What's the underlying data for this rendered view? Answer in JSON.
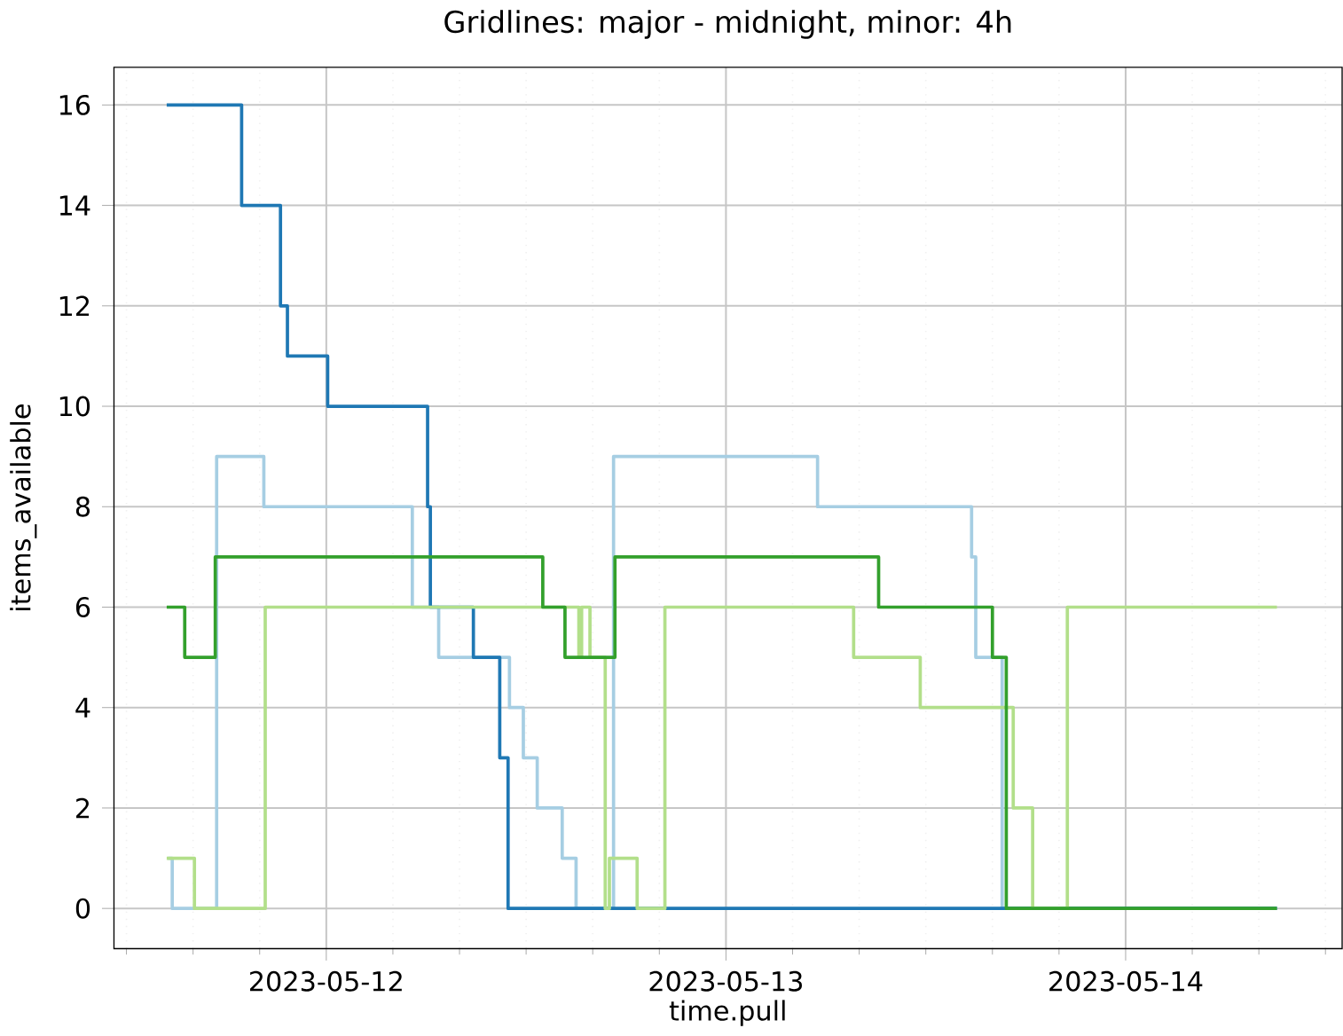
{
  "chart_data": {
    "type": "step",
    "title": "Gridlines: major - midnight, minor: 4h",
    "xlabel": "time.pull",
    "ylabel": "items_available",
    "xlim": [
      "2023-05-11T11:15",
      "2023-05-14T13:00"
    ],
    "ylim": [
      -0.8,
      16.75
    ],
    "yticks": [
      0,
      2,
      4,
      6,
      8,
      10,
      12,
      14,
      16
    ],
    "xticks": [
      {
        "value": "2023-05-11T12:00",
        "label": null
      },
      {
        "value": "2023-05-11T16:00",
        "label": null
      },
      {
        "value": "2023-05-11T20:00",
        "label": null
      },
      "2023-05-12",
      {
        "value": "2023-05-12T04:00",
        "label": null
      },
      {
        "value": "2023-05-12T08:00",
        "label": null
      },
      {
        "value": "2023-05-12T12:00",
        "label": null
      },
      {
        "value": "2023-05-12T16:00",
        "label": null
      },
      {
        "value": "2023-05-12T20:00",
        "label": null
      },
      "2023-05-13",
      {
        "value": "2023-05-13T04:00",
        "label": null
      },
      {
        "value": "2023-05-13T08:00",
        "label": null
      },
      {
        "value": "2023-05-13T12:00",
        "label": null
      },
      {
        "value": "2023-05-13T16:00",
        "label": null
      },
      {
        "value": "2023-05-13T20:00",
        "label": null
      },
      "2023-05-14",
      {
        "value": "2023-05-14T04:00",
        "label": null
      },
      {
        "value": "2023-05-14T08:00",
        "label": null
      },
      {
        "value": "2023-05-14T12:00",
        "label": null
      }
    ],
    "grid": true,
    "series": [
      {
        "color": "#a6cee3",
        "x": [
          "2023-05-11T14:30",
          "2023-05-11T14:45",
          "2023-05-11T17:25",
          "2023-05-11T20:15",
          "2023-05-12T05:10",
          "2023-05-12T06:45",
          "2023-05-12T11:00",
          "2023-05-12T11:50",
          "2023-05-12T12:40",
          "2023-05-12T14:10",
          "2023-05-12T15:00",
          "2023-05-12T17:15",
          "2023-05-13T05:30",
          "2023-05-13T14:45",
          "2023-05-13T15:00",
          "2023-05-13T16:35",
          "2023-05-14T09:05"
        ],
        "values": [
          1,
          0,
          9,
          8,
          6,
          5,
          4,
          3,
          2,
          1,
          0,
          9,
          8,
          7,
          5,
          0,
          0
        ]
      },
      {
        "color": "#1f78b4",
        "x": [
          "2023-05-11T14:25",
          "2023-05-11T18:55",
          "2023-05-11T21:15",
          "2023-05-11T21:40",
          "2023-05-12T00:05",
          "2023-05-12T06:05",
          "2023-05-12T06:15",
          "2023-05-12T08:50",
          "2023-05-12T10:25",
          "2023-05-12T10:55",
          "2023-05-14T09:05"
        ],
        "values": [
          16,
          14,
          12,
          11,
          10,
          8,
          6,
          5,
          3,
          0,
          0
        ]
      },
      {
        "color": "#b2df8a",
        "x": [
          "2023-05-11T14:25",
          "2023-05-11T16:05",
          "2023-05-11T20:20",
          "2023-05-12T15:10",
          "2023-05-12T15:20",
          "2023-05-12T15:50",
          "2023-05-12T16:45",
          "2023-05-12T17:00",
          "2023-05-12T18:40",
          "2023-05-12T20:20",
          "2023-05-13T07:40",
          "2023-05-13T11:40",
          "2023-05-13T17:15",
          "2023-05-13T18:25",
          "2023-05-13T20:30",
          "2023-05-14T09:05"
        ],
        "values": [
          1,
          0,
          6,
          5,
          6,
          5,
          0,
          1,
          0,
          6,
          5,
          4,
          2,
          0,
          6,
          6
        ]
      },
      {
        "color": "#33a02c",
        "x": [
          "2023-05-11T14:25",
          "2023-05-11T15:30",
          "2023-05-11T17:20",
          "2023-05-12T13:00",
          "2023-05-12T14:20",
          "2023-05-12T17:20",
          "2023-05-13T09:10",
          "2023-05-13T16:00",
          "2023-05-13T16:50",
          "2023-05-14T09:05"
        ],
        "values": [
          6,
          5,
          7,
          6,
          5,
          7,
          6,
          5,
          0,
          0
        ]
      }
    ]
  }
}
